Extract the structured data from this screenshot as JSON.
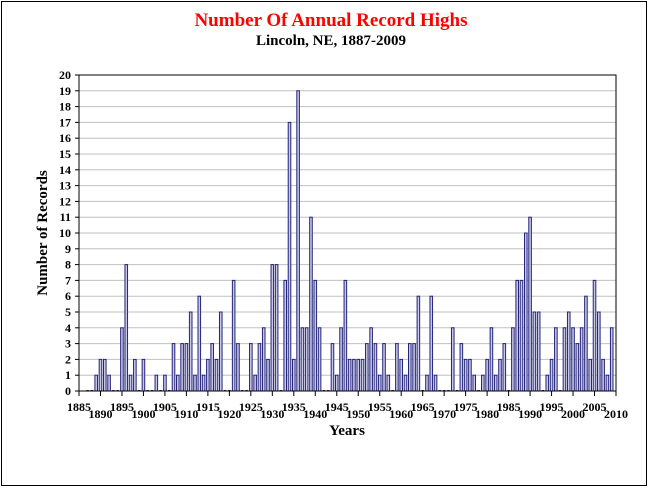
{
  "chart_data": {
    "type": "bar",
    "title": "Number Of Annual Record Highs",
    "subtitle": "Lincoln, NE, 1887-2009",
    "xlabel": "Years",
    "ylabel": "Number of Records",
    "xlim": [
      1885,
      2010
    ],
    "ylim": [
      0,
      20
    ],
    "x_ticks": [
      1885,
      1890,
      1895,
      1900,
      1905,
      1910,
      1915,
      1920,
      1925,
      1930,
      1935,
      1940,
      1945,
      1950,
      1955,
      1960,
      1965,
      1970,
      1975,
      1980,
      1985,
      1990,
      1995,
      2000,
      2005,
      2010
    ],
    "y_ticks": [
      0,
      1,
      2,
      3,
      4,
      5,
      6,
      7,
      8,
      9,
      10,
      11,
      12,
      13,
      14,
      15,
      16,
      17,
      18,
      19,
      20
    ],
    "grid": "horizontal",
    "colors": {
      "title": "#ff0000",
      "bar_fill": "#c8c8e6",
      "bar_edge": "#23237a",
      "grid": "#c0c0c0"
    },
    "x": [
      1887,
      1888,
      1889,
      1890,
      1891,
      1892,
      1893,
      1894,
      1895,
      1896,
      1897,
      1898,
      1899,
      1900,
      1901,
      1902,
      1903,
      1904,
      1905,
      1906,
      1907,
      1908,
      1909,
      1910,
      1911,
      1912,
      1913,
      1914,
      1915,
      1916,
      1917,
      1918,
      1919,
      1920,
      1921,
      1922,
      1923,
      1924,
      1925,
      1926,
      1927,
      1928,
      1929,
      1930,
      1931,
      1932,
      1933,
      1934,
      1935,
      1936,
      1937,
      1938,
      1939,
      1940,
      1941,
      1942,
      1943,
      1944,
      1945,
      1946,
      1947,
      1948,
      1949,
      1950,
      1951,
      1952,
      1953,
      1954,
      1955,
      1956,
      1957,
      1958,
      1959,
      1960,
      1961,
      1962,
      1963,
      1964,
      1965,
      1966,
      1967,
      1968,
      1969,
      1970,
      1971,
      1972,
      1973,
      1974,
      1975,
      1976,
      1977,
      1978,
      1979,
      1980,
      1981,
      1982,
      1983,
      1984,
      1985,
      1986,
      1987,
      1988,
      1989,
      1990,
      1991,
      1992,
      1993,
      1994,
      1995,
      1996,
      1997,
      1998,
      1999,
      2000,
      2001,
      2002,
      2003,
      2004,
      2005,
      2006,
      2007,
      2008,
      2009
    ],
    "values": [
      0,
      0,
      1,
      2,
      2,
      1,
      0,
      0,
      4,
      8,
      1,
      2,
      0,
      2,
      0,
      0,
      1,
      0,
      1,
      0,
      3,
      1,
      3,
      3,
      5,
      1,
      6,
      1,
      2,
      3,
      2,
      5,
      0,
      0,
      7,
      3,
      0,
      0,
      3,
      1,
      3,
      4,
      2,
      8,
      8,
      0,
      7,
      17,
      2,
      19,
      4,
      4,
      11,
      7,
      4,
      0,
      0,
      3,
      1,
      4,
      7,
      2,
      2,
      2,
      2,
      3,
      4,
      3,
      1,
      3,
      1,
      0,
      3,
      2,
      1,
      3,
      3,
      6,
      0,
      1,
      6,
      1,
      0,
      0,
      0,
      4,
      0,
      3,
      2,
      2,
      1,
      0,
      1,
      2,
      4,
      1,
      2,
      3,
      0,
      4,
      7,
      7,
      10,
      11,
      5,
      5,
      0,
      1,
      2,
      4,
      0,
      4,
      5,
      4,
      3,
      4,
      6,
      2,
      7,
      5,
      2,
      1,
      4
    ]
  }
}
